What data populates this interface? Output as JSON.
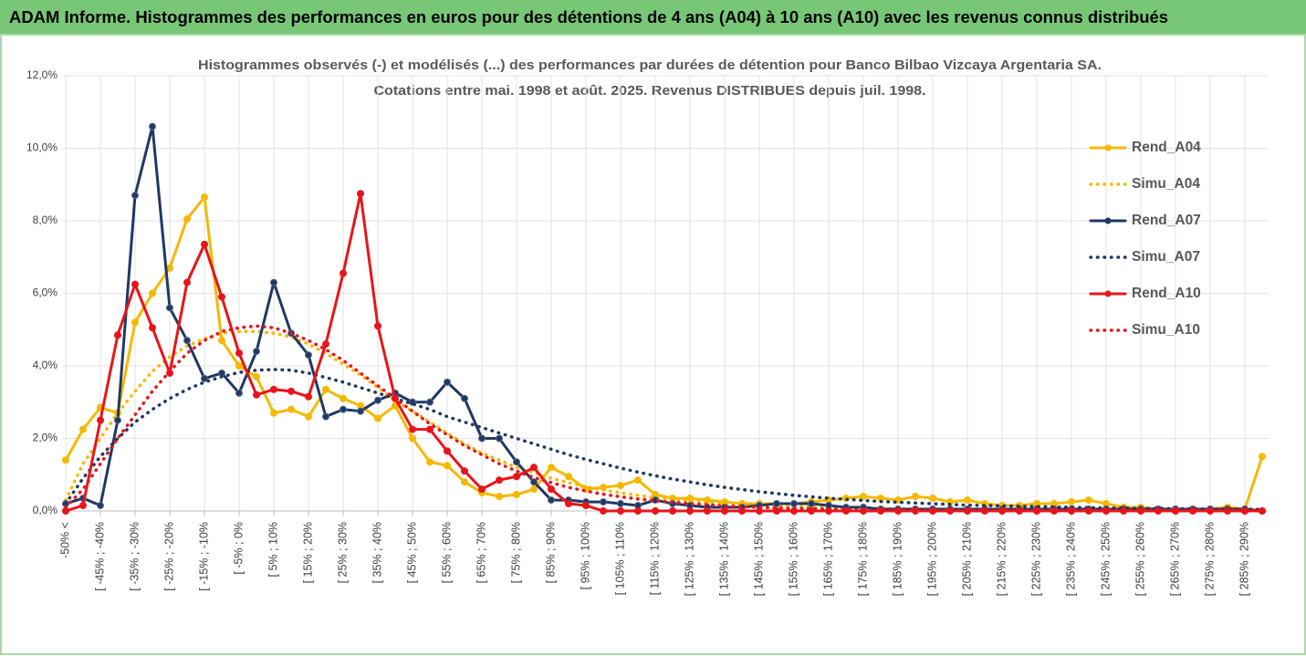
{
  "header": {
    "title": "ADAM Informe. Histogrammes des performances en euros pour des détentions de 4 ans (A04) à 10 ans (A10) avec les revenus connus distribués"
  },
  "chart_data": {
    "type": "line",
    "title": "Histogrammes observés (-) et modélisés (...) des performances par durées de détention pour Banco Bilbao Vizcaya Argentaria SA.",
    "subtitle": "Cotations entre mai. 1998 et août. 2025. Revenus DISTRIBUES depuis juil. 1998.",
    "categories": [
      "-50% <",
      null,
      "[ -45% ; -40%",
      null,
      "[ -35% ; -30%",
      null,
      "[ -25% ; -20%",
      null,
      "[ -15% ; -10%",
      null,
      "[ -5% ; 0%",
      null,
      "[ 5% ; 10%",
      null,
      "[ 15% ; 20%",
      null,
      "[ 25% ; 30%",
      null,
      "[ 35% ; 40%",
      null,
      "[ 45% ; 50%",
      null,
      "[ 55% ; 60%",
      null,
      "[ 65% ; 70%",
      null,
      "[ 75% ; 80%",
      null,
      "[ 85% ; 90%",
      null,
      "[ 95% ; 100%",
      null,
      "[ 105% ; 110%",
      null,
      "[ 115% ; 120%",
      null,
      "[ 125% ; 130%",
      null,
      "[ 135% ; 140%",
      null,
      "[ 145% ; 150%",
      null,
      "[ 155% ; 160%",
      null,
      "[ 165% ; 170%",
      null,
      "[ 175% ; 180%",
      null,
      "[ 185% ; 190%",
      null,
      "[ 195% ; 200%",
      null,
      "[ 205% ; 210%",
      null,
      "[ 215% ; 220%",
      null,
      "[ 225% ; 230%",
      null,
      "[ 235% ; 240%",
      null,
      "[ 245% ; 250%",
      null,
      "[ 255% ; 260%",
      null,
      "[ 265% ; 270%",
      null,
      "[ 275% ; 280%",
      null,
      "[ 285% ; 290%",
      null
    ],
    "series": [
      {
        "name": "Rend_A04",
        "color": "#f5b800",
        "style": "solid",
        "values": [
          1.4,
          2.25,
          2.85,
          2.7,
          5.2,
          6.0,
          6.7,
          8.05,
          8.65,
          4.7,
          4.0,
          3.7,
          2.7,
          2.8,
          2.6,
          3.35,
          3.1,
          2.9,
          2.55,
          2.9,
          2.0,
          1.35,
          1.25,
          0.8,
          0.5,
          0.4,
          0.45,
          0.6,
          1.2,
          0.95,
          0.6,
          0.65,
          0.7,
          0.85,
          0.45,
          0.35,
          0.35,
          0.3,
          0.25,
          0.2,
          0.2,
          0.2,
          0.2,
          0.25,
          0.3,
          0.35,
          0.4,
          0.35,
          0.3,
          0.4,
          0.35,
          0.25,
          0.3,
          0.2,
          0.15,
          0.15,
          0.2,
          0.2,
          0.25,
          0.3,
          0.2,
          0.1,
          0.1,
          0.05,
          0.05,
          0.05,
          0.05,
          0.1,
          0.05,
          1.5
        ]
      },
      {
        "name": "Simu_A04",
        "color": "#f5b800",
        "style": "dotted",
        "values": [
          0.3,
          1.3,
          2.0,
          2.7,
          3.3,
          3.85,
          4.25,
          4.55,
          4.75,
          4.9,
          4.95,
          4.95,
          4.9,
          4.8,
          4.6,
          4.35,
          4.05,
          3.75,
          3.4,
          3.05,
          2.75,
          2.45,
          2.15,
          1.85,
          1.6,
          1.4,
          1.2,
          1.05,
          0.9,
          0.78,
          0.67,
          0.58,
          0.5,
          0.43,
          0.37,
          0.32,
          0.28,
          0.24,
          0.21,
          0.18,
          0.16,
          0.14,
          0.12,
          0.11,
          0.1,
          0.09,
          0.08,
          0.07,
          0.06,
          0.05,
          0.04,
          0.04,
          0.04,
          0.04,
          0.04,
          0.04,
          0.04,
          0.04,
          0.04,
          0.04,
          0.03,
          0.03,
          0.03,
          0.03,
          0.03,
          0.03,
          0.03,
          0.03,
          0.03,
          0.03
        ]
      },
      {
        "name": "Rend_A07",
        "color": "#1f3864",
        "style": "solid",
        "values": [
          0.2,
          0.35,
          0.15,
          2.5,
          8.7,
          10.6,
          5.6,
          4.7,
          3.65,
          3.8,
          3.25,
          4.4,
          6.3,
          4.9,
          4.3,
          2.6,
          2.8,
          2.75,
          3.05,
          3.25,
          3.0,
          3.0,
          3.55,
          3.1,
          2.0,
          2.0,
          1.35,
          0.8,
          0.3,
          0.3,
          0.25,
          0.25,
          0.2,
          0.15,
          0.3,
          0.2,
          0.15,
          0.1,
          0.1,
          0.1,
          0.15,
          0.2,
          0.2,
          0.2,
          0.15,
          0.1,
          0.1,
          0.05,
          0.05,
          0.05,
          0.05,
          0.05,
          0.05,
          0.05,
          0.05,
          0.05,
          0.05,
          0.05,
          0.05,
          0.05,
          0.05,
          0.05,
          0.05,
          0.05,
          0.05,
          0.05,
          0.05,
          0.05,
          0.05,
          0.0
        ]
      },
      {
        "name": "Simu_A07",
        "color": "#1f3864",
        "style": "dotted",
        "values": [
          0.2,
          0.9,
          1.5,
          2.0,
          2.45,
          2.8,
          3.1,
          3.35,
          3.55,
          3.7,
          3.82,
          3.88,
          3.9,
          3.88,
          3.8,
          3.68,
          3.55,
          3.4,
          3.25,
          3.1,
          2.95,
          2.8,
          2.6,
          2.45,
          2.3,
          2.15,
          2.0,
          1.85,
          1.7,
          1.55,
          1.42,
          1.3,
          1.18,
          1.07,
          0.97,
          0.88,
          0.8,
          0.72,
          0.65,
          0.59,
          0.53,
          0.48,
          0.43,
          0.39,
          0.35,
          0.32,
          0.29,
          0.26,
          0.24,
          0.22,
          0.2,
          0.18,
          0.16,
          0.15,
          0.14,
          0.13,
          0.12,
          0.11,
          0.1,
          0.09,
          0.08,
          0.08,
          0.07,
          0.07,
          0.06,
          0.06,
          0.05,
          0.05,
          0.05,
          0.04
        ]
      },
      {
        "name": "Rend_A10",
        "color": "#e8141a",
        "style": "solid",
        "values": [
          0.0,
          0.15,
          2.5,
          4.85,
          6.25,
          5.05,
          3.8,
          6.3,
          7.35,
          5.9,
          4.35,
          3.2,
          3.35,
          3.3,
          3.15,
          4.6,
          6.55,
          8.75,
          5.1,
          3.1,
          2.25,
          2.25,
          1.65,
          1.1,
          0.6,
          0.85,
          0.95,
          1.2,
          0.6,
          0.2,
          0.15,
          0.0,
          0.0,
          0.0,
          0.0,
          0.0,
          0.0,
          0.0,
          0.0,
          0.0,
          0.0,
          0.0,
          0.0,
          0.0,
          0.0,
          0.0,
          0.0,
          0.0,
          0.0,
          0.0,
          0.0,
          0.0,
          0.0,
          0.0,
          0.0,
          0.0,
          0.0,
          0.0,
          0.0,
          0.0,
          0.0,
          0.0,
          0.0,
          0.0,
          0.0,
          0.0,
          0.0,
          0.0,
          0.0,
          0.0
        ]
      },
      {
        "name": "Simu_A10",
        "color": "#e8141a",
        "style": "dotted",
        "values": [
          0.1,
          0.6,
          1.3,
          2.0,
          2.65,
          3.3,
          3.85,
          4.35,
          4.7,
          4.95,
          5.05,
          5.1,
          5.05,
          4.9,
          4.7,
          4.45,
          4.15,
          3.8,
          3.45,
          3.1,
          2.75,
          2.4,
          2.1,
          1.8,
          1.55,
          1.3,
          1.1,
          0.92,
          0.78,
          0.65,
          0.55,
          0.46,
          0.39,
          0.33,
          0.28,
          0.24,
          0.2,
          0.17,
          0.14,
          0.12,
          0.1,
          0.08,
          0.07,
          0.06,
          0.05,
          0.04,
          0.02,
          0.02,
          0.02,
          0.02,
          0.02,
          0.02,
          0.02,
          0.02,
          0.02,
          0.02,
          0.02,
          0.02,
          0.02,
          0.02,
          0.02,
          0.02,
          0.02,
          0.02,
          0.02,
          0.02,
          0.02,
          0.02,
          0.02,
          0.02
        ]
      }
    ],
    "ylim": [
      0,
      12
    ],
    "yticks": [
      {
        "value": 0,
        "label": "0,0%"
      },
      {
        "value": 2,
        "label": "2,0%"
      },
      {
        "value": 4,
        "label": "4,0%"
      },
      {
        "value": 6,
        "label": "6,0%"
      },
      {
        "value": 8,
        "label": "8,0%"
      },
      {
        "value": 10,
        "label": "10,0%"
      },
      {
        "value": 12,
        "label": "12,0%"
      }
    ],
    "grid": true,
    "legend": "right"
  }
}
